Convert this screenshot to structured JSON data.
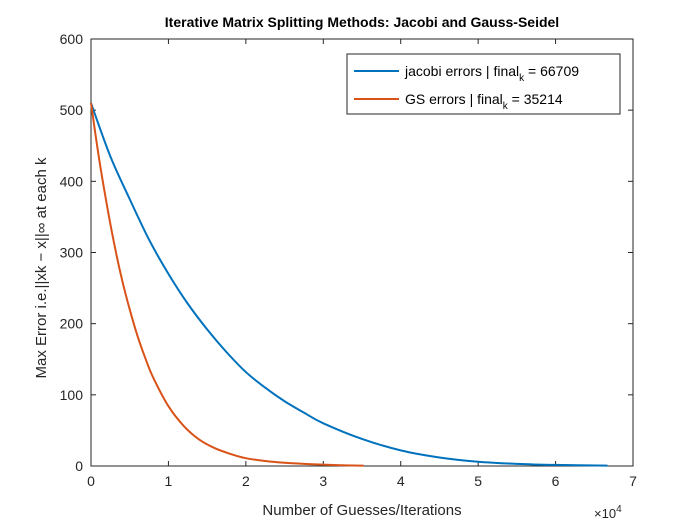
{
  "chart_data": {
    "type": "line",
    "title": "Iterative Matrix Splitting Methods: Jacobi and Gauss-Seidel",
    "xlabel": "Number of Guesses/Iterations",
    "ylabel": "Max Error i.e.||xk − x||∞ at each k",
    "x_exponent_label": "×10",
    "x_exponent": "4",
    "xlim": [
      0,
      70000
    ],
    "ylim": [
      0,
      600
    ],
    "xticks": [
      0,
      10000,
      20000,
      30000,
      40000,
      50000,
      60000,
      70000
    ],
    "xtick_labels": [
      "0",
      "1",
      "2",
      "3",
      "4",
      "5",
      "6",
      "7"
    ],
    "yticks": [
      0,
      100,
      200,
      300,
      400,
      500,
      600
    ],
    "ytick_labels": [
      "0",
      "100",
      "200",
      "300",
      "400",
      "500",
      "600"
    ],
    "grid": false,
    "legend_position": "top-right",
    "series": [
      {
        "name": "jacobi errors | final",
        "name_subscript": "k",
        "name_suffix": " = 66709",
        "color": "#0072BD",
        "x": [
          0,
          2500,
          5000,
          7500,
          10000,
          12500,
          15000,
          17500,
          20000,
          22500,
          25000,
          27500,
          30000,
          35000,
          40000,
          45000,
          50000,
          55000,
          60000,
          66709
        ],
        "y": [
          510,
          435,
          375,
          318,
          270,
          228,
          192,
          160,
          132,
          110,
          91,
          75,
          60,
          38,
          22,
          12,
          6,
          3,
          1.5,
          0.5
        ]
      },
      {
        "name": "GS errors | final",
        "name_subscript": "k",
        "name_suffix": " = 35214",
        "color": "#D95319",
        "x": [
          0,
          1000,
          2000,
          3000,
          4000,
          5000,
          6000,
          7000,
          8000,
          10000,
          12000,
          14000,
          16000,
          18000,
          20000,
          22500,
          25000,
          27500,
          30000,
          32500,
          35214
        ],
        "y": [
          510,
          435,
          370,
          312,
          262,
          220,
          183,
          152,
          125,
          84,
          56,
          37,
          25,
          17,
          11,
          7,
          4.5,
          3,
          2,
          1,
          0.5
        ]
      }
    ]
  }
}
